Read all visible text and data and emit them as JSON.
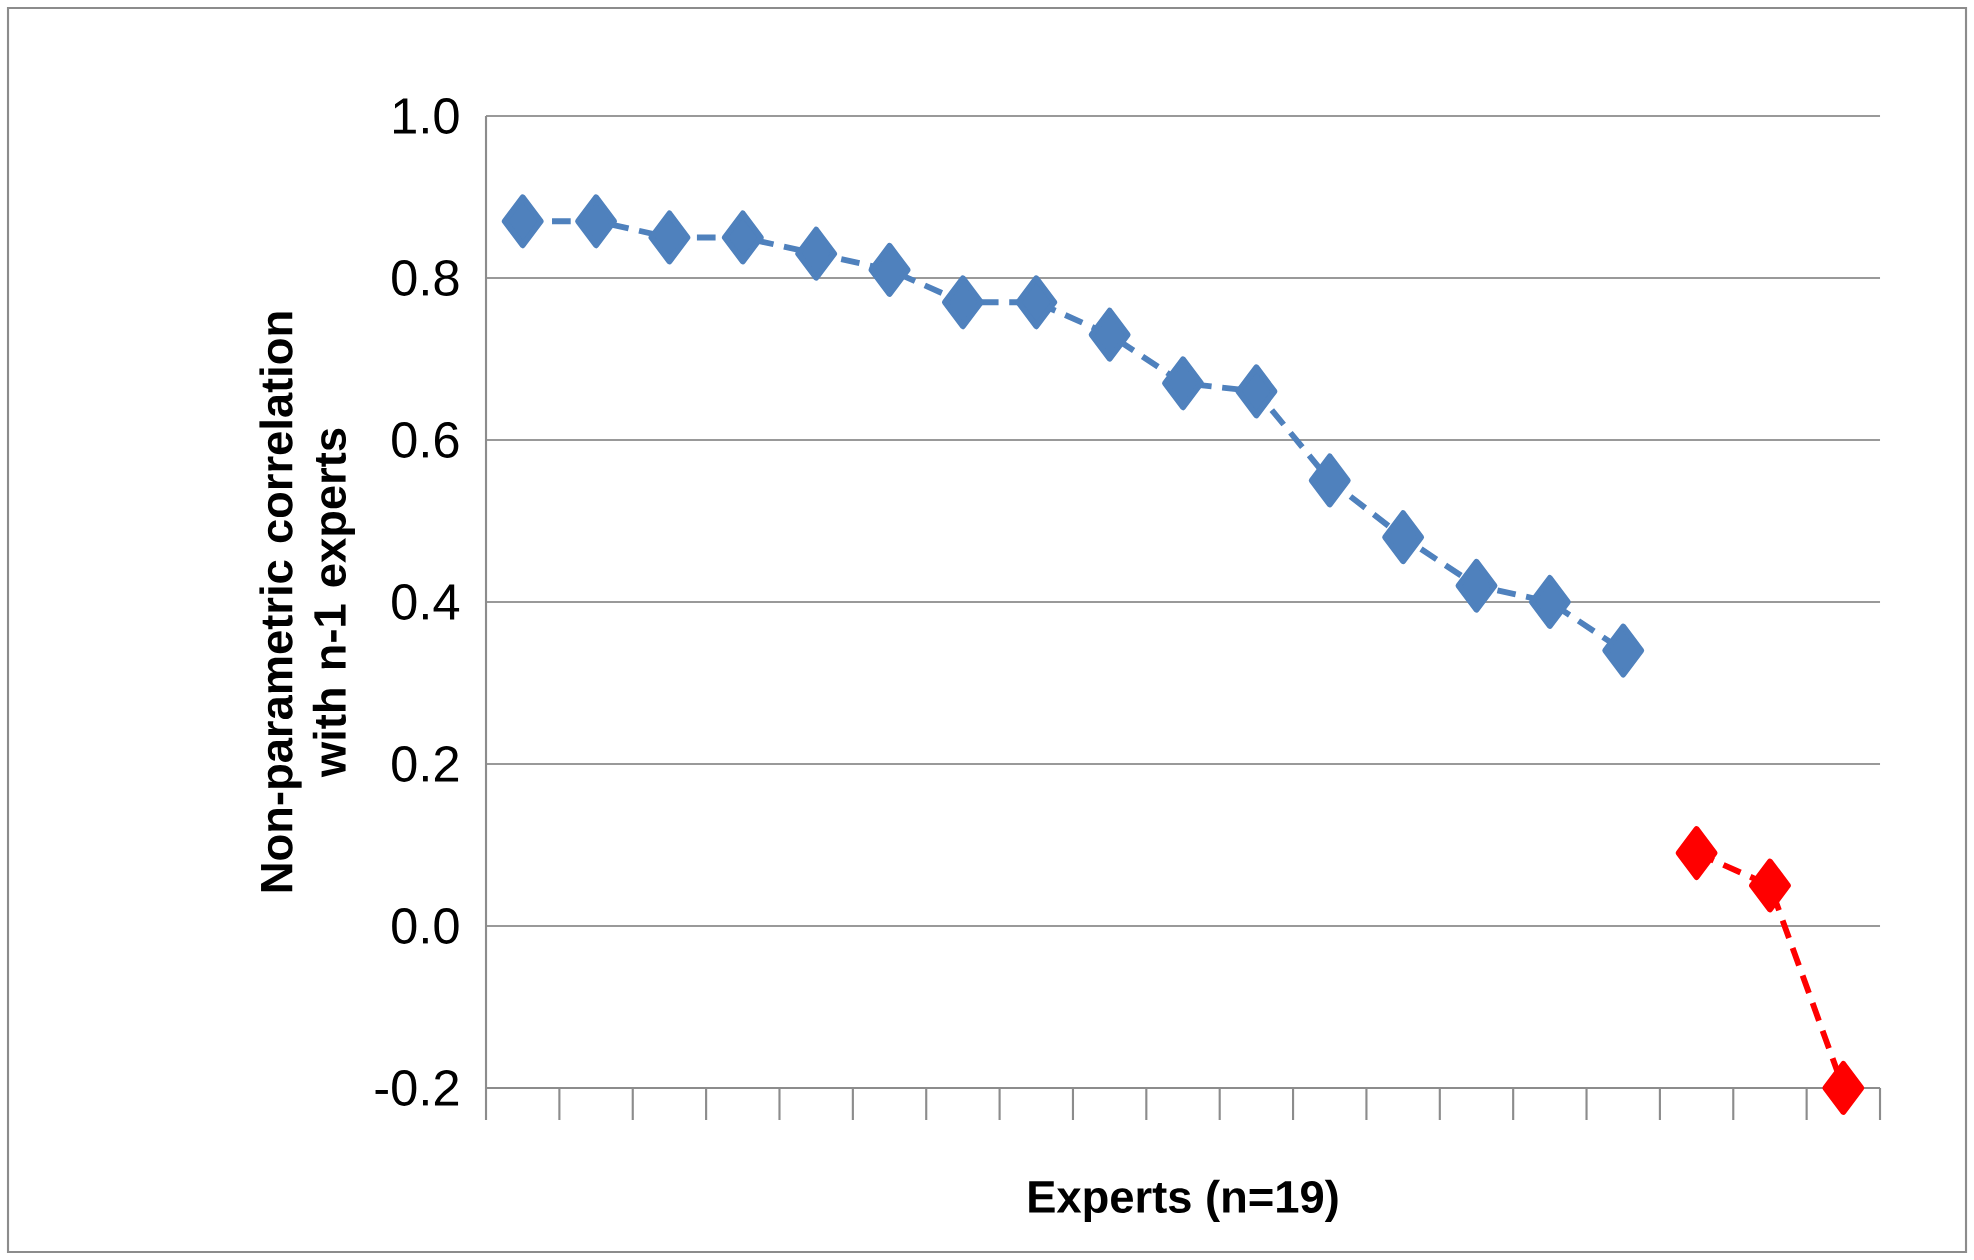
{
  "chart_data": {
    "type": "line",
    "xlabel": "Experts (n=19)",
    "ylabel": "Non-parametric correlation with n-1 experts",
    "categories": [
      null,
      null,
      null,
      null,
      null,
      null,
      null,
      null,
      null,
      null,
      null,
      null,
      null,
      null,
      null,
      null,
      null,
      null,
      null
    ],
    "series": [
      {
        "color": "#4f81bd",
        "values": [
          0.87,
          0.87,
          0.85,
          0.85,
          0.83,
          0.81,
          0.77,
          0.77,
          0.73,
          0.67,
          0.66,
          0.55,
          0.48,
          0.42,
          0.4,
          0.34,
          null,
          null,
          null
        ]
      },
      {
        "color": "#ff0000",
        "values": [
          null,
          null,
          null,
          null,
          null,
          null,
          null,
          null,
          null,
          null,
          null,
          null,
          null,
          null,
          null,
          null,
          0.09,
          0.05,
          -0.2
        ]
      }
    ],
    "ylim": [
      -0.2,
      1.0
    ],
    "yticks": [
      {
        "value": -0.2,
        "label": "-0.2"
      },
      {
        "value": 0,
        "label": "0.0"
      },
      {
        "value": 0.2,
        "label": "0.2"
      },
      {
        "value": 0.4,
        "label": "0.4"
      },
      {
        "value": 0.6,
        "label": "0.6"
      },
      {
        "value": 0.8,
        "label": "0.8"
      },
      {
        "value": 1.0,
        "label": "1.0"
      }
    ],
    "grid": "y",
    "marker": "diamond",
    "line_style": "dashed"
  }
}
